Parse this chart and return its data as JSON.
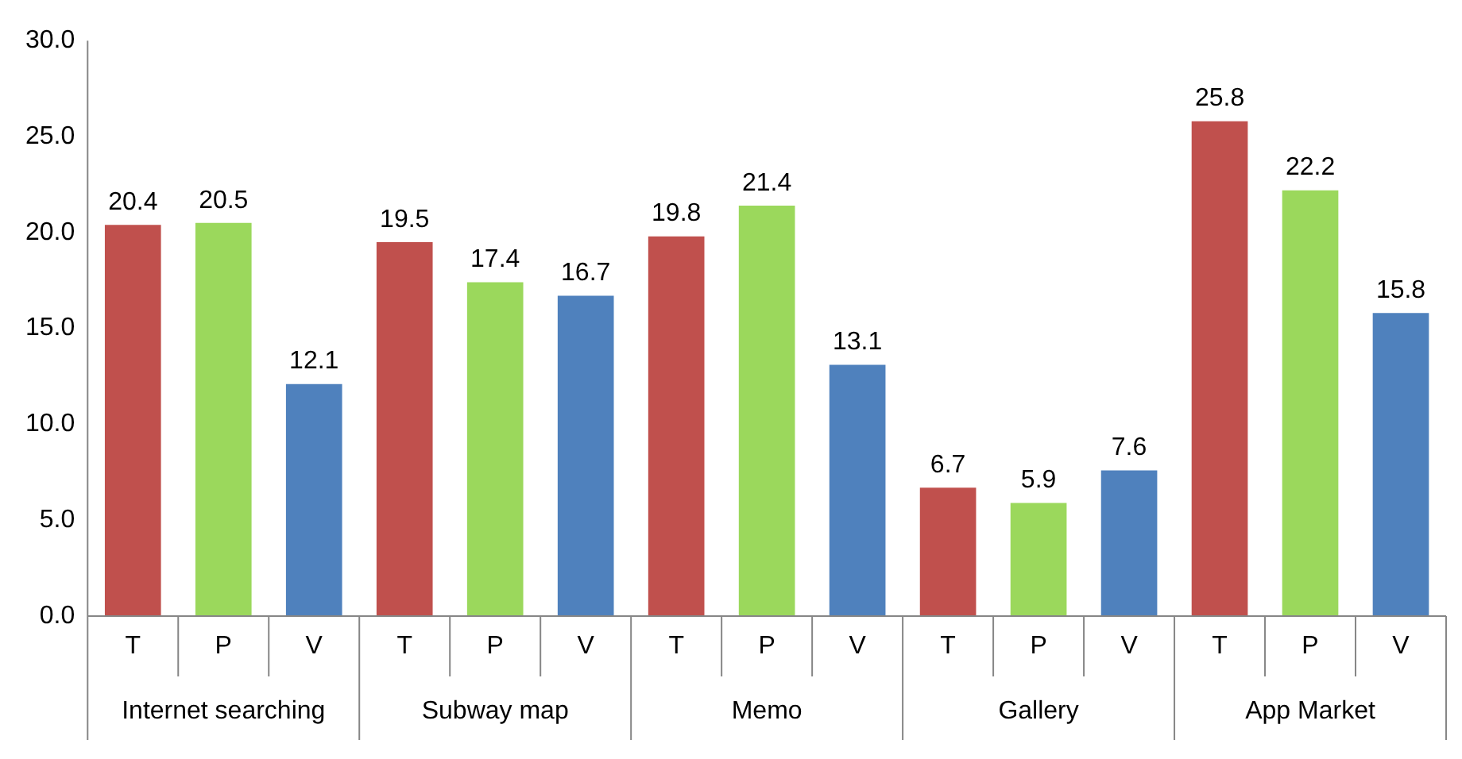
{
  "chart_data": {
    "type": "bar",
    "categories": [
      "Internet searching",
      "Subway map",
      "Memo",
      "Gallery",
      "App Market"
    ],
    "series": [
      {
        "name": "T",
        "color": "#c0504d",
        "values": [
          20.4,
          19.5,
          19.8,
          6.7,
          25.8
        ]
      },
      {
        "name": "P",
        "color": "#9bd85c",
        "values": [
          20.5,
          17.4,
          21.4,
          5.9,
          22.2
        ]
      },
      {
        "name": "V",
        "color": "#4f81bd",
        "values": [
          12.1,
          16.7,
          13.1,
          7.6,
          15.8
        ]
      }
    ],
    "ylim": [
      0,
      30
    ],
    "yticks": [
      {
        "value": 0,
        "label": "0.0"
      },
      {
        "value": 5,
        "label": "5.0"
      },
      {
        "value": 10,
        "label": "10.0"
      },
      {
        "value": 15,
        "label": "15.0"
      },
      {
        "value": 20,
        "label": "20.0"
      },
      {
        "value": 25,
        "label": "25.0"
      },
      {
        "value": 30,
        "label": "30.0"
      }
    ],
    "grid": false,
    "legend": false,
    "data_labels": true
  }
}
